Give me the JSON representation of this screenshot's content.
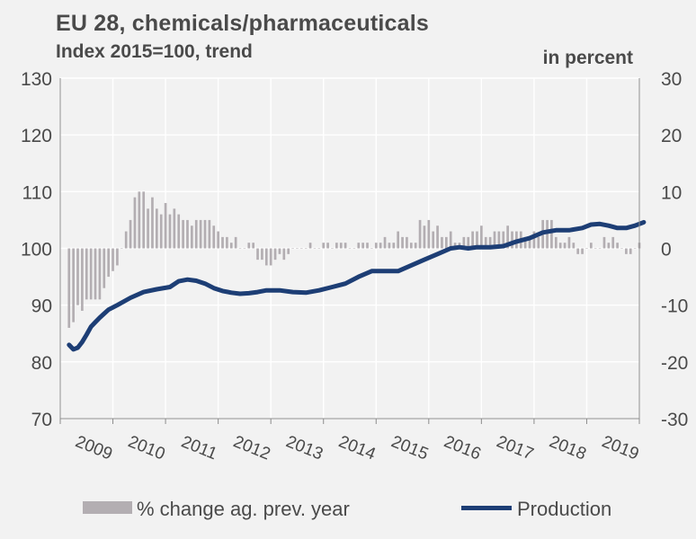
{
  "title": "EU 28, chemicals/pharmaceuticals",
  "subtitle": "Index 2015=100, trend",
  "right_unit": "in percent",
  "colors": {
    "bars": "#b3aeb2",
    "line": "#1d3e75",
    "grid": "#ffffff",
    "background": "#f2f2f2",
    "text": "#4a4a4a"
  },
  "chart_data": {
    "type": "bar+line",
    "y_left": {
      "min": 70,
      "max": 130,
      "ticks": [
        "130",
        "120",
        "110",
        "100",
        "90",
        "80",
        "70"
      ]
    },
    "y_right": {
      "min": -30,
      "max": 30,
      "ticks": [
        "30",
        "20",
        "10",
        "0",
        "-10",
        "-20",
        "-30"
      ]
    },
    "x_years": [
      "2009",
      "2010",
      "2011",
      "2012",
      "2013",
      "2014",
      "2015",
      "2016",
      "2017",
      "2018",
      "2019"
    ],
    "grid": true,
    "legend_position": "bottom",
    "series": [
      {
        "name": "% change ag. prev. year",
        "type": "bar",
        "axis": "right",
        "start": "2008-03",
        "frequency": "monthly",
        "values": [
          -14,
          -13,
          -10,
          -11,
          -9,
          -9,
          -9,
          -9,
          -7,
          -5,
          -4,
          -3,
          0,
          3,
          5,
          9,
          10,
          10,
          7,
          9,
          7,
          6,
          8,
          6,
          7,
          6,
          5,
          5,
          4,
          5,
          5,
          5,
          5,
          4,
          3,
          2,
          2,
          1,
          2,
          0,
          0,
          1,
          1,
          -2,
          -2,
          -3,
          -3,
          -2,
          -1,
          -2,
          -1,
          0,
          0,
          0,
          0,
          1,
          0,
          0,
          1,
          1,
          0,
          1,
          1,
          1,
          0,
          0,
          1,
          1,
          1,
          0,
          1,
          1,
          2,
          1,
          1,
          3,
          2,
          2,
          1,
          1,
          5,
          4,
          5,
          3,
          4,
          2,
          2,
          3,
          1,
          1,
          2,
          2,
          3,
          3,
          4,
          2,
          2,
          3,
          3,
          3,
          4,
          3,
          3,
          3,
          2,
          2,
          3,
          2,
          5,
          5,
          5,
          2,
          1,
          1,
          2,
          1,
          -1,
          -1,
          0,
          1,
          0,
          0,
          2,
          1,
          2,
          1,
          0,
          -1,
          -1,
          0,
          1,
          1,
          2,
          2,
          3,
          1,
          1,
          2,
          1,
          0,
          2,
          1,
          1,
          2,
          2,
          2,
          1,
          1,
          2,
          2,
          2,
          2,
          1,
          1,
          2,
          3,
          2,
          1,
          1,
          0,
          0,
          1,
          1,
          2,
          2,
          3,
          4,
          4,
          3,
          2,
          2,
          2,
          3,
          2,
          2,
          2,
          0,
          0,
          -1,
          0,
          2,
          3
        ]
      },
      {
        "name": "Production",
        "type": "line",
        "axis": "left",
        "points": [
          [
            "2008-03",
            83.0
          ],
          [
            "2008-04",
            82.2
          ],
          [
            "2008-05",
            82.5
          ],
          [
            "2008-06",
            83.5
          ],
          [
            "2008-07",
            84.8
          ],
          [
            "2008-08",
            86.2
          ],
          [
            "2008-09",
            87.0
          ],
          [
            "2008-10",
            87.8
          ],
          [
            "2008-11",
            88.5
          ],
          [
            "2008-12",
            89.2
          ],
          [
            "2009-02",
            90.0
          ],
          [
            "2009-05",
            91.3
          ],
          [
            "2009-08",
            92.3
          ],
          [
            "2009-11",
            92.8
          ],
          [
            "2010-02",
            93.2
          ],
          [
            "2010-04",
            94.2
          ],
          [
            "2010-06",
            94.5
          ],
          [
            "2010-08",
            94.3
          ],
          [
            "2010-10",
            93.8
          ],
          [
            "2010-12",
            93.0
          ],
          [
            "2011-02",
            92.5
          ],
          [
            "2011-04",
            92.2
          ],
          [
            "2011-06",
            92.0
          ],
          [
            "2011-08",
            92.1
          ],
          [
            "2011-10",
            92.3
          ],
          [
            "2011-12",
            92.6
          ],
          [
            "2012-03",
            92.6
          ],
          [
            "2012-06",
            92.3
          ],
          [
            "2012-09",
            92.2
          ],
          [
            "2012-12",
            92.6
          ],
          [
            "2013-03",
            93.2
          ],
          [
            "2013-06",
            93.8
          ],
          [
            "2013-09",
            95.0
          ],
          [
            "2013-12",
            96.0
          ],
          [
            "2014-03",
            96.0
          ],
          [
            "2014-06",
            96.0
          ],
          [
            "2014-09",
            97.0
          ],
          [
            "2014-12",
            98.0
          ],
          [
            "2015-03",
            99.0
          ],
          [
            "2015-06",
            100.0
          ],
          [
            "2015-08",
            100.2
          ],
          [
            "2015-10",
            100.0
          ],
          [
            "2015-12",
            100.2
          ],
          [
            "2016-03",
            100.2
          ],
          [
            "2016-06",
            100.4
          ],
          [
            "2016-09",
            101.2
          ],
          [
            "2016-12",
            101.8
          ],
          [
            "2017-03",
            102.8
          ],
          [
            "2017-06",
            103.2
          ],
          [
            "2017-09",
            103.2
          ],
          [
            "2017-12",
            103.6
          ],
          [
            "2018-02",
            104.2
          ],
          [
            "2018-04",
            104.3
          ],
          [
            "2018-06",
            104.0
          ],
          [
            "2018-08",
            103.6
          ],
          [
            "2018-10",
            103.6
          ],
          [
            "2018-12",
            104.0
          ],
          [
            "2019-02",
            104.6
          ]
        ]
      }
    ]
  },
  "legend": {
    "bars_label": "% change ag. prev. year",
    "line_label": "Production"
  }
}
